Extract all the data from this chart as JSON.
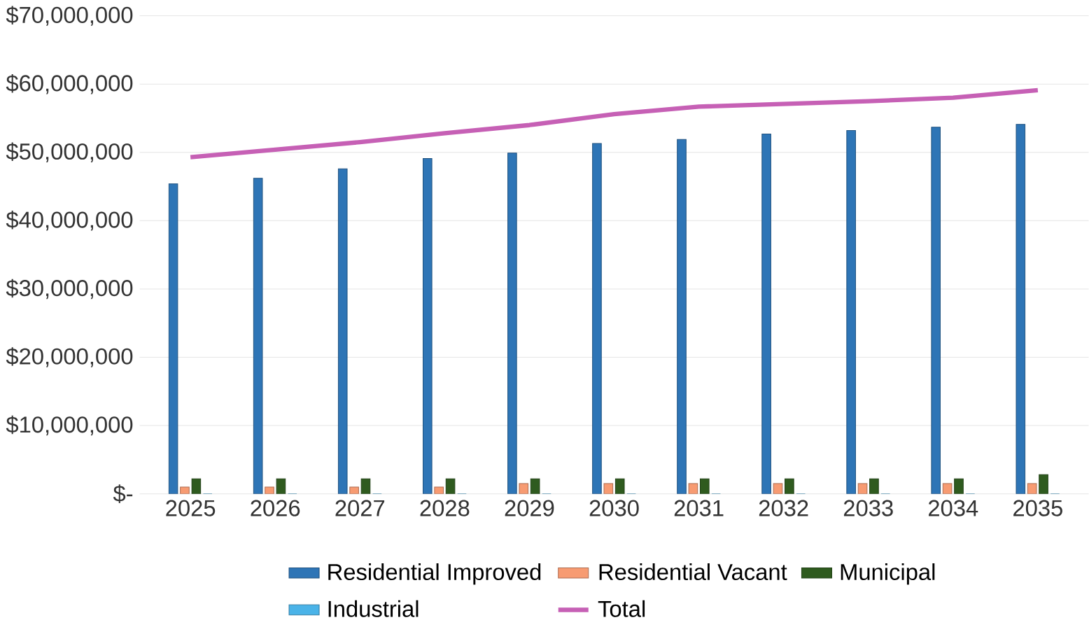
{
  "chart_data": {
    "type": "bar",
    "categories": [
      "2025",
      "2026",
      "2027",
      "2028",
      "2029",
      "2030",
      "2031",
      "2032",
      "2033",
      "2034",
      "2035"
    ],
    "series": [
      {
        "name": "Residential Improved",
        "color": "#2e75b6",
        "values": [
          45400000,
          46200000,
          47600000,
          49100000,
          49900000,
          51300000,
          51900000,
          52700000,
          53200000,
          53700000,
          54100000
        ]
      },
      {
        "name": "Residential Vacant",
        "color": "#f79b72",
        "values": [
          1000000,
          1000000,
          1000000,
          1000000,
          1500000,
          1500000,
          1500000,
          1500000,
          1500000,
          1500000,
          1500000
        ]
      },
      {
        "name": "Municipal",
        "color": "#2f5b1f",
        "values": [
          2200000,
          2200000,
          2200000,
          2200000,
          2200000,
          2200000,
          2200000,
          2200000,
          2200000,
          2200000,
          2800000
        ]
      },
      {
        "name": "Industrial",
        "color": "#4ab3e8",
        "values": [
          0,
          0,
          0,
          0,
          0,
          0,
          0,
          0,
          0,
          0,
          0
        ]
      },
      {
        "name": "Total",
        "type": "line",
        "color": "#c660b5",
        "values": [
          49300000,
          50400000,
          51500000,
          52800000,
          54000000,
          55600000,
          56700000,
          57100000,
          57500000,
          58000000,
          59100000
        ]
      }
    ],
    "ylim": [
      0,
      70000000
    ],
    "yticks": [
      {
        "value": 0,
        "label": "$-"
      },
      {
        "value": 10000000,
        "label": "$10,000,000"
      },
      {
        "value": 20000000,
        "label": "$20,000,000"
      },
      {
        "value": 30000000,
        "label": "$30,000,000"
      },
      {
        "value": 40000000,
        "label": "$40,000,000"
      },
      {
        "value": 50000000,
        "label": "$50,000,000"
      },
      {
        "value": 60000000,
        "label": "$60,000,000"
      },
      {
        "value": 70000000,
        "label": "$70,000,000"
      }
    ],
    "grid": "y",
    "legend": "bottom"
  }
}
